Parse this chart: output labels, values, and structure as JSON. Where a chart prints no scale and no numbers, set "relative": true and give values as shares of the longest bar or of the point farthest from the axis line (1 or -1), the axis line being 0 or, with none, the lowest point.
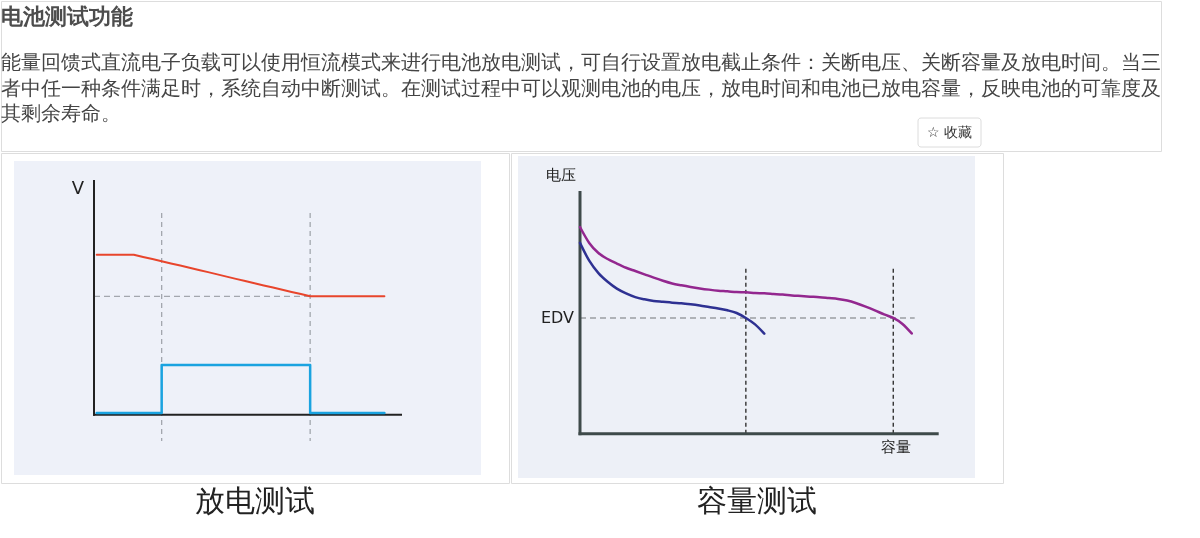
{
  "chart_data": [
    {
      "type": "other",
      "title": "电池测试功能",
      "subtitle": "能量回馈式直流电子负载可以使用恒流模式来进行电池放电测试，可自行设置放电截止条件：关断电压、关断容量及放电时间。当三者中任一种条件满足时，系统自动中断测试。在测试过程中可以观测电池的电压，放电时间和电池已放电容量，反映电池的可靠度及其剩余寿命。",
      "annotations": [
        "☆ 收藏"
      ]
    },
    {
      "type": "line",
      "title": "放电测试",
      "ylabel": "V",
      "relative": true,
      "categories": [
        null,
        null,
        null,
        null,
        null,
        null,
        null,
        null,
        null,
        null,
        null,
        null,
        null,
        null,
        null,
        null,
        null,
        null,
        null,
        null,
        null,
        null,
        null,
        null,
        null,
        null,
        null,
        null,
        null,
        null,
        null,
        null
      ],
      "series": [
        {
          "color": "#e8452c",
          "values": [
            1,
            1,
            1,
            1,
            1,
            0.986,
            0.973,
            0.959,
            0.945,
            0.932,
            0.918,
            0.904,
            0.891,
            0.877,
            0.863,
            0.849,
            0.836,
            0.822,
            0.808,
            0.795,
            0.781,
            0.767,
            0.754,
            0.74,
            0.74,
            0.74,
            0.74,
            0.74,
            0.74,
            0.74,
            0.74,
            0.74
          ]
        },
        {
          "type": "step",
          "color": "#1aa3e0",
          "values": [
            0.01,
            0.01,
            0.01,
            0.01,
            0.01,
            0.01,
            0.01,
            0.31,
            0.31,
            0.31,
            0.31,
            0.31,
            0.31,
            0.31,
            0.31,
            0.31,
            0.31,
            0.31,
            0.31,
            0.31,
            0.31,
            0.31,
            0.31,
            0.01,
            0.01,
            0.01,
            0.01,
            0.01,
            0.01,
            0.01,
            0.01,
            0.01
          ]
        }
      ],
      "ref_lines": [
        {
          "axis": "y",
          "value": 0.74,
          "color": "#a3a7ae",
          "line_style": "dashed"
        }
      ]
    },
    {
      "type": "line",
      "title": "容量测试",
      "ylabel": "电压",
      "xlabel": "容量",
      "relative": true,
      "categories": [
        null,
        null,
        null,
        null,
        null,
        null,
        null,
        null,
        null,
        null,
        null,
        null,
        null,
        null,
        null,
        null,
        null,
        null,
        null,
        null,
        null,
        null,
        null,
        null,
        null,
        null,
        null,
        null,
        null,
        null,
        null,
        null,
        null,
        null,
        null,
        null,
        null
      ],
      "series": [
        {
          "color": "#2e3192",
          "values": [
            0.923,
            0.837,
            0.777,
            0.735,
            0.702,
            0.679,
            0.661,
            0.65,
            0.642,
            0.638,
            0.634,
            0.631,
            0.626,
            0.62,
            0.613,
            0.606,
            0.597,
            0.584,
            0.56,
            0.529,
            0.484,
            null,
            null,
            null,
            null,
            null,
            null,
            null,
            null,
            null,
            null,
            null,
            null,
            null,
            null,
            null,
            null
          ]
        },
        {
          "color": "#93278f",
          "values": [
            1,
            0.923,
            0.874,
            0.845,
            0.823,
            0.803,
            0.787,
            0.771,
            0.755,
            0.74,
            0.727,
            0.718,
            0.71,
            0.703,
            0.697,
            0.692,
            0.689,
            0.685,
            0.684,
            0.681,
            0.679,
            0.676,
            0.673,
            0.669,
            0.666,
            0.663,
            0.66,
            0.656,
            0.652,
            0.644,
            0.631,
            0.615,
            0.597,
            0.577,
            0.56,
            0.531,
            0.485
          ]
        }
      ],
      "ref_lines": [
        {
          "axis": "y",
          "value": 0.56,
          "label": "EDV",
          "color": "#9a9da2",
          "line_style": "dashed"
        }
      ]
    }
  ]
}
